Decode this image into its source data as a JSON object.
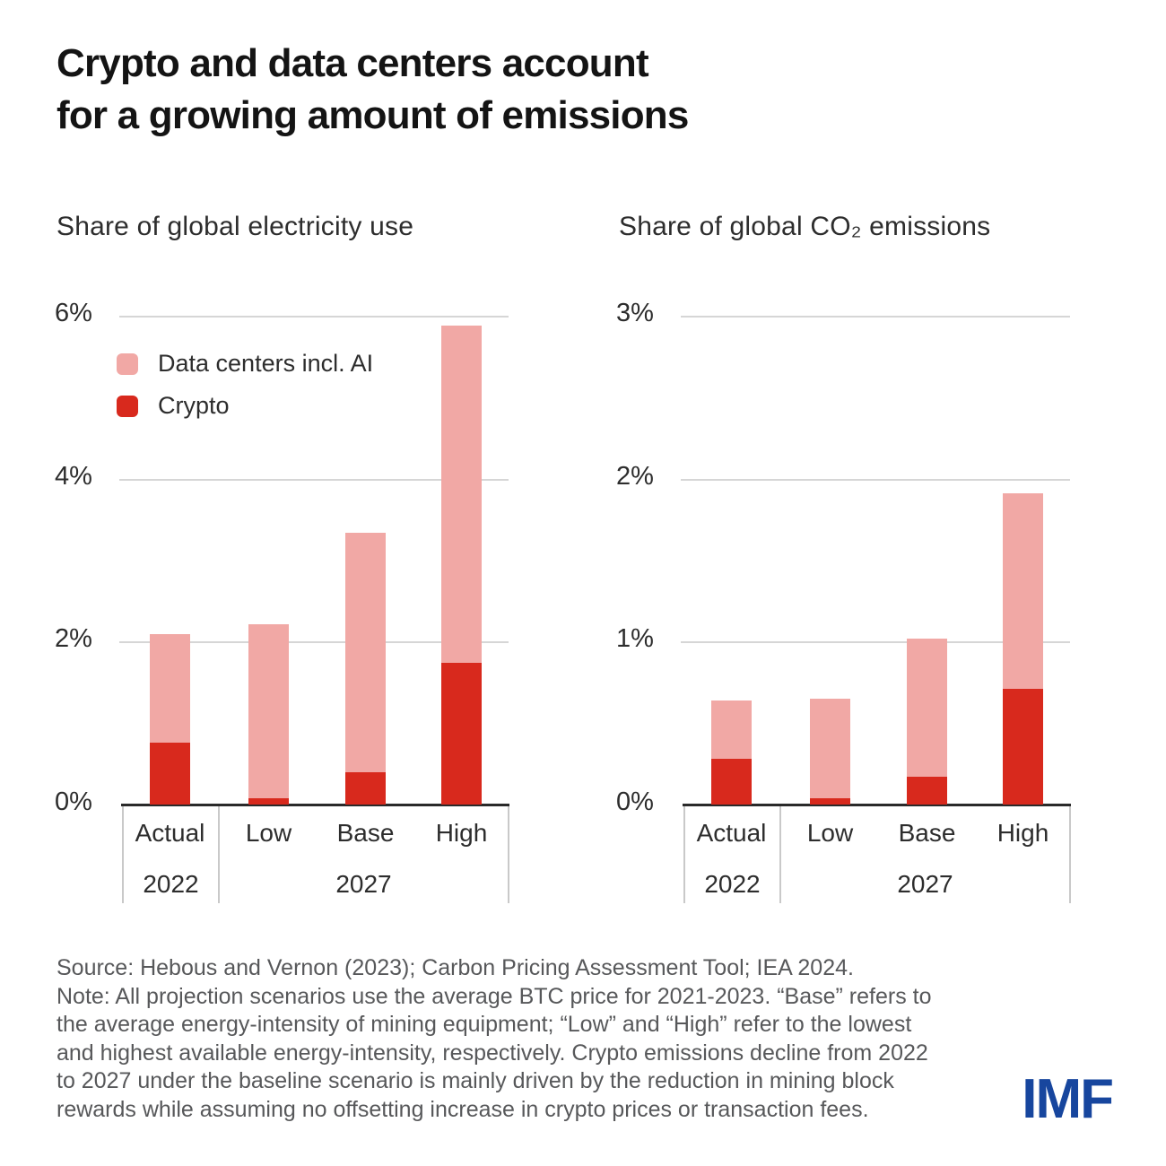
{
  "header": {
    "title_lines": [
      "Crypto and data centers account",
      "for a growing amount of emissions"
    ]
  },
  "legend": {
    "items": [
      {
        "label": "Data centers incl. AI",
        "color": "#f1a8a5"
      },
      {
        "label": "Crypto",
        "color": "#d8291d"
      }
    ]
  },
  "chart_data": [
    {
      "type": "bar",
      "stacked": true,
      "title": "Share of global electricity use",
      "categories": [
        "Actual",
        "Low",
        "Base",
        "High"
      ],
      "groups": [
        {
          "label": "2022",
          "categories": [
            "Actual"
          ]
        },
        {
          "label": "2027",
          "categories": [
            "Low",
            "Base",
            "High"
          ]
        }
      ],
      "series": [
        {
          "name": "Crypto",
          "color": "#d8291d",
          "values": [
            0.76,
            0.08,
            0.4,
            1.74
          ]
        },
        {
          "name": "Data centers incl. AI",
          "color": "#f1a8a5",
          "values": [
            1.33,
            2.13,
            2.94,
            4.14
          ]
        }
      ],
      "totals": [
        2.09,
        2.21,
        3.34,
        5.88
      ],
      "ylim": [
        0,
        6
      ],
      "ytick_values": [
        6,
        4,
        2,
        0
      ],
      "ytick_labels": [
        "6%",
        "4%",
        "2%",
        "0%"
      ],
      "grid": true,
      "legend_position": "top-left-inside"
    },
    {
      "type": "bar",
      "stacked": true,
      "title": "Share of global CO₂ emissions",
      "categories": [
        "Actual",
        "Low",
        "Base",
        "High"
      ],
      "groups": [
        {
          "label": "2022",
          "categories": [
            "Actual"
          ]
        },
        {
          "label": "2027",
          "categories": [
            "Low",
            "Base",
            "High"
          ]
        }
      ],
      "series": [
        {
          "name": "Crypto",
          "color": "#d8291d",
          "values": [
            0.28,
            0.04,
            0.17,
            0.71
          ]
        },
        {
          "name": "Data centers incl. AI",
          "color": "#f1a8a5",
          "values": [
            0.36,
            0.61,
            0.85,
            1.2
          ]
        }
      ],
      "totals": [
        0.64,
        0.65,
        1.02,
        1.91
      ],
      "ylim": [
        0,
        3
      ],
      "ytick_values": [
        3,
        2,
        1,
        0
      ],
      "ytick_labels": [
        "3%",
        "2%",
        "1%",
        "0%"
      ],
      "grid": true,
      "legend_position": "none"
    }
  ],
  "footer": {
    "source": "Source: Hebous and Vernon (2023); Carbon Pricing Assessment Tool; IEA 2024.",
    "note_lines": [
      "Note: All projection scenarios use the average BTC price for 2021-2023. “Base” refers to",
      "the average energy-intensity of mining equipment; “Low” and “High” refer to the lowest",
      "and highest available energy-intensity, respectively. Crypto emissions decline from 2022",
      "to 2027 under the baseline scenario is mainly driven by the reduction in mining block",
      "rewards while assuming no offsetting increase in crypto prices or transaction fees."
    ]
  },
  "logo": {
    "text": "IMF"
  }
}
